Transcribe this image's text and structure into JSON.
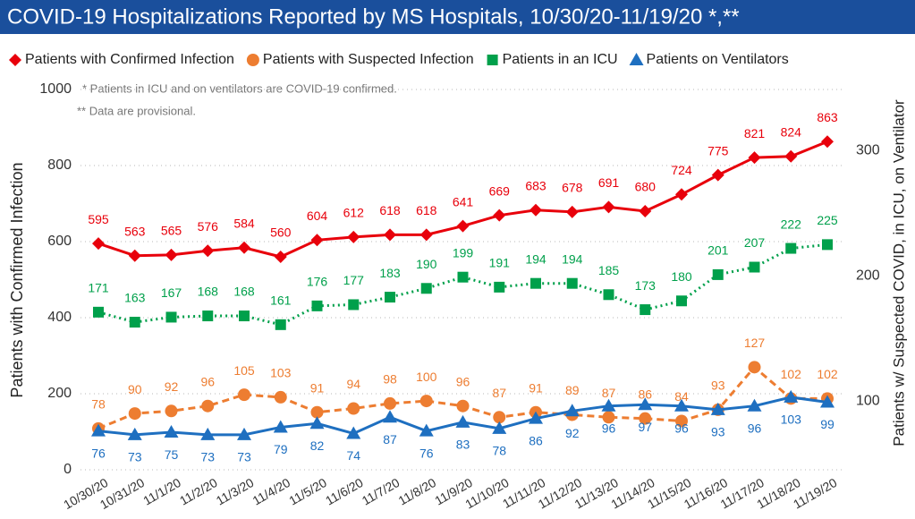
{
  "chart_data": {
    "type": "line",
    "title": "COVID-19 Hospitalizations Reported by MS Hospitals, 10/30/20-11/19/20 *,**",
    "annotations": [
      "* Patients in ICU and on ventilators are COVID-19 confirmed.",
      "** Data are provisional."
    ],
    "y_label": "Patients with Confirmed Infection",
    "y2_label": "Patients w/ Suspected COVID, in ICU, on Ventilator",
    "categories": [
      "10/30/20",
      "10/31/20",
      "11/1/20",
      "11/2/20",
      "11/3/20",
      "11/4/20",
      "11/5/20",
      "11/6/20",
      "11/7/20",
      "11/8/20",
      "11/9/20",
      "11/10/20",
      "11/11/20",
      "11/12/20",
      "11/13/20",
      "11/14/20",
      "11/15/20",
      "11/16/20",
      "11/17/20",
      "11/18/20",
      "11/19/20"
    ],
    "ylim": [
      0,
      1000
    ],
    "yticks": [
      0,
      200,
      400,
      600,
      800,
      1000
    ],
    "y2lim": [
      45,
      349
    ],
    "y2ticks": [
      100,
      200,
      300
    ],
    "grid": true,
    "legend": "top",
    "series": [
      {
        "name": "Patients with Confirmed Infection",
        "color": "#e8000b",
        "marker": "diamond",
        "line_style": "solid",
        "label_position": "above",
        "values": [
          595,
          563,
          565,
          576,
          584,
          560,
          604,
          612,
          618,
          618,
          641,
          669,
          683,
          678,
          691,
          680,
          724,
          775,
          821,
          824,
          863
        ]
      },
      {
        "name": "Patients with Suspected Infection",
        "color": "#ed7d31",
        "marker": "circle",
        "line_style": "dashed",
        "label_position": "above",
        "axis": "y2",
        "values": [
          78,
          90,
          92,
          96,
          105,
          103,
          91,
          94,
          98,
          100,
          96,
          87,
          91,
          89,
          87,
          86,
          84,
          93,
          127,
          102,
          102
        ]
      },
      {
        "name": "Patients in an ICU",
        "color": "#00a04b",
        "marker": "square",
        "line_style": "dotted",
        "label_position": "above",
        "axis": "y2",
        "values": [
          171,
          163,
          167,
          168,
          168,
          161,
          176,
          177,
          183,
          190,
          199,
          191,
          194,
          194,
          185,
          173,
          180,
          201,
          207,
          222,
          225
        ]
      },
      {
        "name": "Patients on Ventilators",
        "color": "#1e6fc0",
        "marker": "triangle",
        "line_style": "solid",
        "label_position": "below",
        "axis": "y2",
        "values": [
          76,
          73,
          75,
          73,
          73,
          79,
          82,
          74,
          87,
          76,
          83,
          78,
          86,
          92,
          96,
          97,
          96,
          93,
          96,
          103,
          99
        ]
      }
    ]
  }
}
